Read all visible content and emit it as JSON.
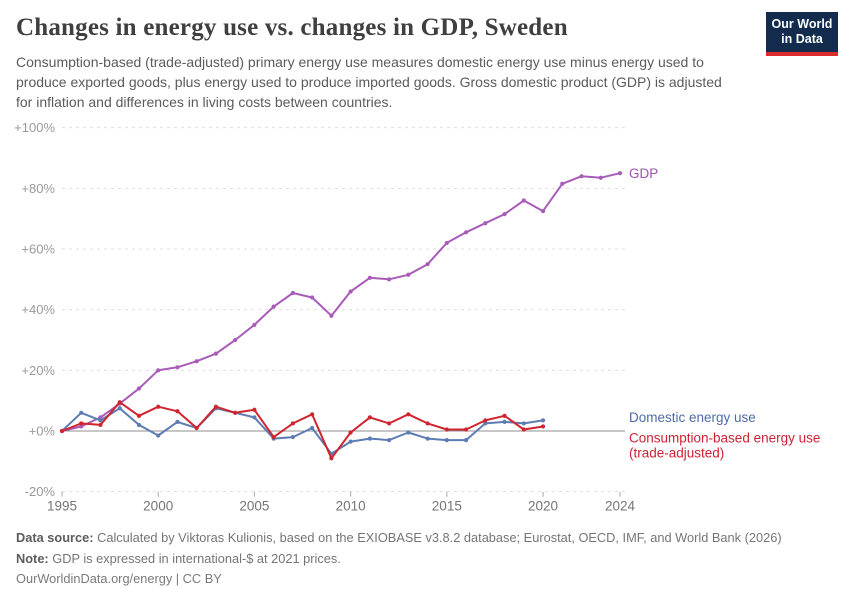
{
  "header": {
    "title": "Changes in energy use vs. changes in GDP, Sweden",
    "subtitle": "Consumption-based (trade-adjusted) primary energy use measures domestic energy use minus energy used to produce exported goods, plus energy used to produce imported goods. Gross domestic product (GDP) is adjusted for inflation and differences in living costs between countries.",
    "logo": {
      "line1": "Our World",
      "line2": "in Data",
      "bg_color": "#132c4e",
      "bar_color": "#dd2a2c"
    }
  },
  "chart_data": {
    "type": "line",
    "x": [
      1995,
      1996,
      1997,
      1998,
      1999,
      2000,
      2001,
      2002,
      2003,
      2004,
      2005,
      2006,
      2007,
      2008,
      2009,
      2010,
      2011,
      2012,
      2013,
      2014,
      2015,
      2016,
      2017,
      2018,
      2019,
      2020,
      2021,
      2022,
      2023,
      2024
    ],
    "series": [
      {
        "name": "GDP",
        "color": "#a85cb8",
        "label_color": "#9d53ae",
        "label_lines": [
          "GDP"
        ],
        "values": [
          0,
          1.5,
          4.5,
          9,
          14,
          20,
          21,
          23,
          25.5,
          30,
          35,
          41,
          45.5,
          44,
          38,
          46,
          50.5,
          50,
          51.5,
          55,
          62,
          65.5,
          68.5,
          71.5,
          76,
          72.5,
          81.5,
          84,
          83.5,
          85
        ]
      },
      {
        "name": "Domestic energy use",
        "color": "#5c7cb3",
        "label_color": "#4d6ba8",
        "label_lines": [
          "Domestic energy use"
        ],
        "values": [
          0,
          6,
          3.5,
          7.5,
          2,
          -1.5,
          3,
          1,
          7.5,
          6,
          4.5,
          -2.5,
          -2,
          1,
          -7.5,
          -3.5,
          -2.5,
          -3,
          -0.5,
          -2.5,
          -3,
          -3,
          2.5,
          3,
          2.5,
          3.5
        ]
      },
      {
        "name": "Consumption-based energy use (trade-adjusted)",
        "color": "#d0252f",
        "label_color": "#cd2334",
        "label_lines": [
          "Consumption-based energy use",
          "(trade-adjusted)"
        ],
        "values": [
          0,
          2.5,
          2,
          9.5,
          5,
          8,
          6.5,
          1,
          8,
          6,
          7,
          -2,
          2.5,
          5.5,
          -9,
          -0.5,
          4.5,
          2.5,
          5.5,
          2.5,
          0.5,
          0.5,
          3.5,
          5,
          0.5,
          1.5
        ]
      }
    ],
    "title": "Changes in energy use vs. changes in GDP, Sweden",
    "xlabel": "",
    "ylabel": "",
    "ylim": [
      -20,
      100
    ],
    "yticks": [
      {
        "value": 100,
        "label": "+100%"
      },
      {
        "value": 80,
        "label": "+80%"
      },
      {
        "value": 60,
        "label": "+60%"
      },
      {
        "value": 40,
        "label": "+40%"
      },
      {
        "value": 20,
        "label": "+20%"
      },
      {
        "value": 0,
        "label": "+0%"
      },
      {
        "value": -20,
        "label": "-20%"
      }
    ],
    "xticks": [
      1995,
      2000,
      2005,
      2010,
      2015,
      2020,
      2024
    ],
    "grid": "horizontal-dashed",
    "legend": "end-of-line-labels",
    "colors": {
      "grid": "#dedede",
      "zero_line": "#8f8f8f",
      "ytick_text": "#9a9a9a",
      "xtick_text": "#757575",
      "tick_mark": "#a8a8a8"
    }
  },
  "footer": {
    "data_source_label": "Data source:",
    "data_source_text": " Calculated by Viktoras Kulionis, based on the EXIOBASE v3.8.2 database; Eurostat, OECD, IMF, and World Bank (2026)",
    "note_label": "Note:",
    "note_text": " GDP is expressed in international-$ at 2021 prices.",
    "url": "OurWorldinData.org/energy | CC BY"
  }
}
